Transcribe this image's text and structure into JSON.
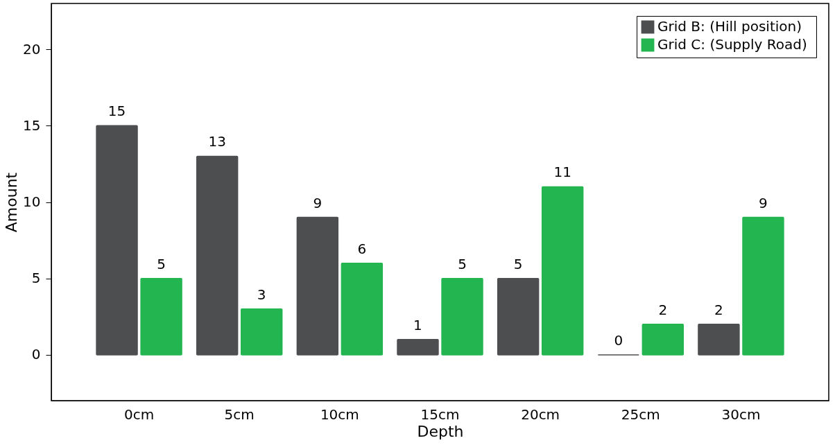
{
  "chart_data": {
    "type": "bar",
    "xlabel": "Depth",
    "ylabel": "Amount",
    "categories": [
      "0cm",
      "5cm",
      "10cm",
      "15cm",
      "20cm",
      "25cm",
      "30cm"
    ],
    "series": [
      {
        "name": "Grid B: (Hill position)",
        "color": "#4d4e50",
        "values": [
          15,
          13,
          9,
          1,
          5,
          0,
          2
        ]
      },
      {
        "name": "Grid C: (Supply  Road)",
        "color": "#22b550",
        "values": [
          5,
          3,
          6,
          5,
          11,
          2,
          9
        ]
      }
    ],
    "ylim": [
      -3,
      23
    ],
    "yticks": [
      0,
      5,
      10,
      15,
      20
    ],
    "grid": false,
    "legend": "top right",
    "data_labels": true
  }
}
